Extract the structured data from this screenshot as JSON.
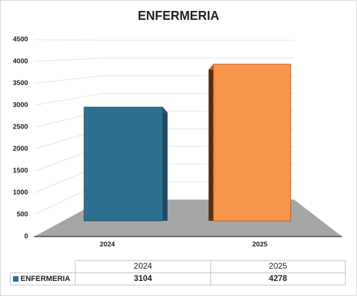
{
  "chart_data": {
    "type": "bar",
    "title": "ENFERMERIA",
    "categories": [
      "2024",
      "2025"
    ],
    "series": [
      {
        "name": "ENFERMERIA",
        "color": "#2e6f8f",
        "values": [
          3104,
          4278
        ]
      }
    ],
    "point_colors": [
      "#2e6f8f",
      "#f7964a"
    ],
    "ylim": [
      0,
      4500
    ],
    "yticks": [
      0,
      500,
      1000,
      1500,
      2000,
      2500,
      3000,
      3500,
      4000,
      4500
    ],
    "grid": true,
    "data_table": true
  }
}
